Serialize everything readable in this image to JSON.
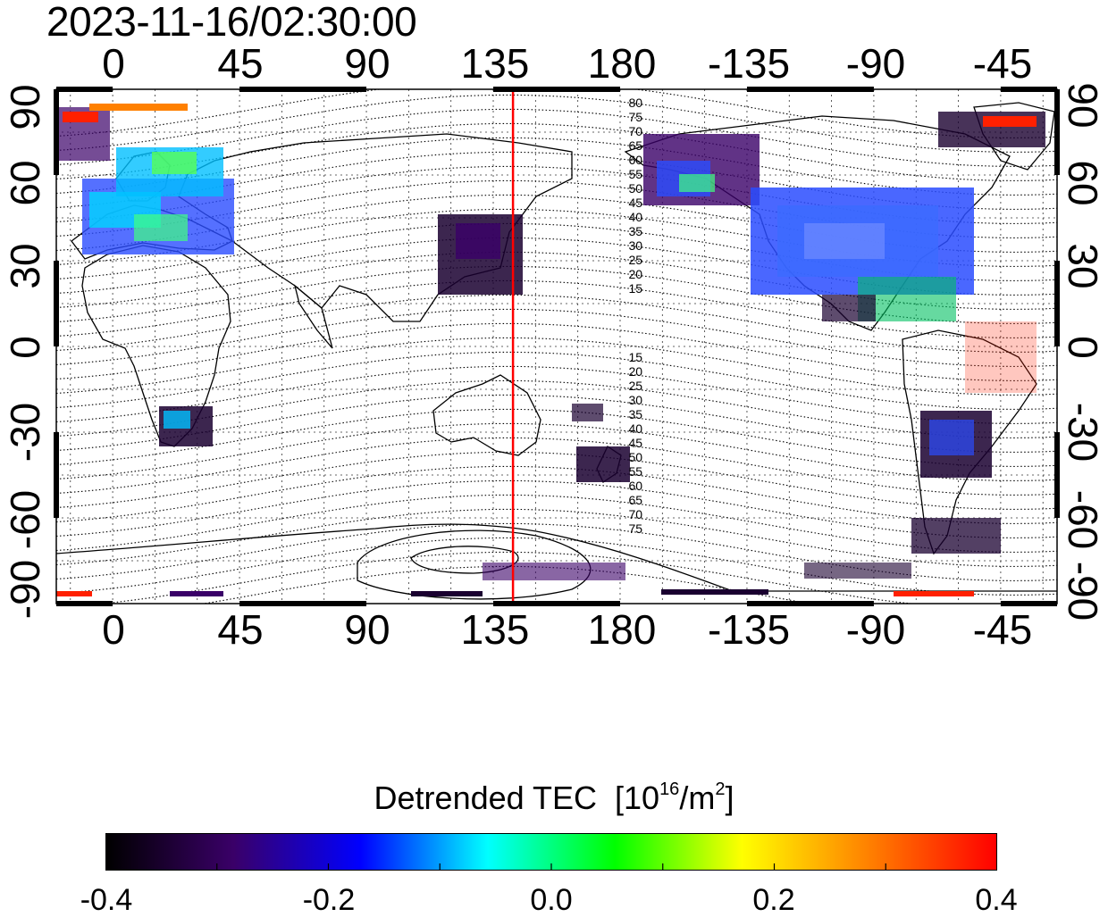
{
  "title": "2023-11-16/02:30:00",
  "map": {
    "lon_ticks": [
      "0",
      "45",
      "90",
      "135",
      "180",
      "-135",
      "-90",
      "-45"
    ],
    "lat_ticks_left": [
      "90",
      "60",
      "30",
      "0",
      "-30",
      "-60",
      "-90"
    ],
    "lat_ticks_right": [
      "90",
      "60",
      "30",
      "0",
      "-30",
      "-60",
      "-90"
    ],
    "lon_range": [
      -20,
      335
    ],
    "lat_range": [
      -90,
      90
    ],
    "marker_longitude": 142,
    "marker_color": "#ff0000",
    "contour_labels_north": [
      "80",
      "75",
      "70",
      "65",
      "60",
      "55",
      "50",
      "45",
      "40",
      "35",
      "30",
      "25",
      "20",
      "15"
    ],
    "contour_labels_south": [
      "15",
      "20",
      "25",
      "30",
      "35",
      "40",
      "45",
      "50",
      "55",
      "60",
      "65",
      "70",
      "75"
    ]
  },
  "colorbar": {
    "title": "Detrended TEC",
    "unit_prefix": "[10",
    "unit_exp": "16",
    "unit_mid": "/m",
    "unit_exp2": "2",
    "unit_suffix": "]",
    "min": -0.4,
    "max": 0.4,
    "ticks": [
      "-0.4",
      "-0.2",
      "0.0",
      "0.2",
      "0.4"
    ],
    "colors": [
      "#000000",
      "#3a0068",
      "#0000ff",
      "#00ffff",
      "#00ff00",
      "#ffff00",
      "#ff8000",
      "#ff0000"
    ]
  }
}
